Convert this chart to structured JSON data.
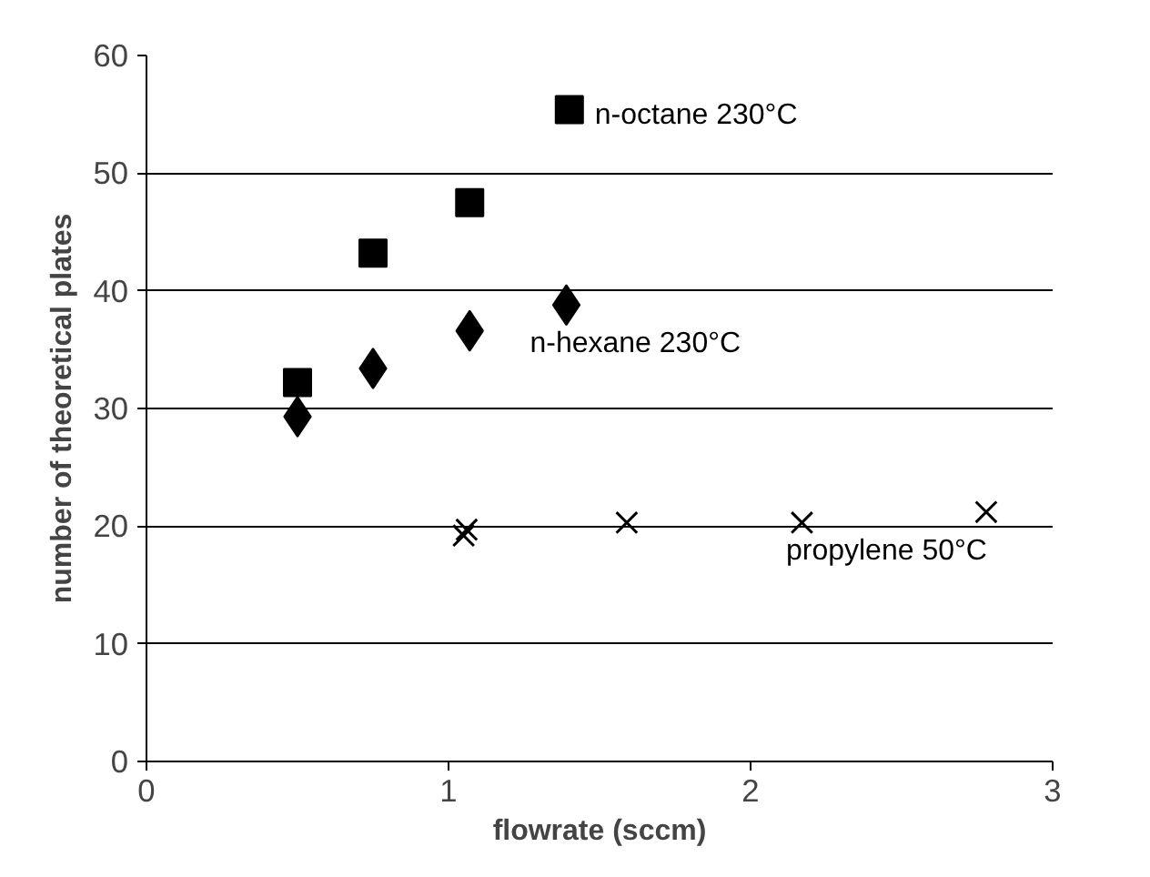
{
  "chart_data": {
    "type": "scatter",
    "xlabel": "flowrate (sccm)",
    "ylabel": "number of theoretical plates",
    "xlim": [
      0,
      3
    ],
    "xticks": [
      0,
      1,
      2,
      3
    ],
    "ylim": [
      0,
      60
    ],
    "yticks": [
      0,
      10,
      20,
      30,
      40,
      50,
      60
    ],
    "grid": "y",
    "series": [
      {
        "name": "n-octane 230°C",
        "color": "#000000",
        "marker": "square",
        "x": [
          0.5,
          0.75,
          1.07,
          1.4
        ],
        "values": [
          32.2,
          43.2,
          47.5,
          55.4
        ]
      },
      {
        "name": "n-hexane 230°C",
        "color": "#000000",
        "marker": "diamond",
        "x": [
          0.5,
          0.75,
          1.07,
          1.39
        ],
        "values": [
          29.3,
          33.4,
          36.6,
          38.8
        ]
      },
      {
        "name": "propylene 50°C",
        "color": "#000000",
        "marker": "cross",
        "x": [
          1.05,
          1.06,
          1.59,
          2.17,
          2.78
        ],
        "values": [
          19.2,
          19.7,
          20.3,
          20.3,
          21.2
        ]
      }
    ]
  }
}
